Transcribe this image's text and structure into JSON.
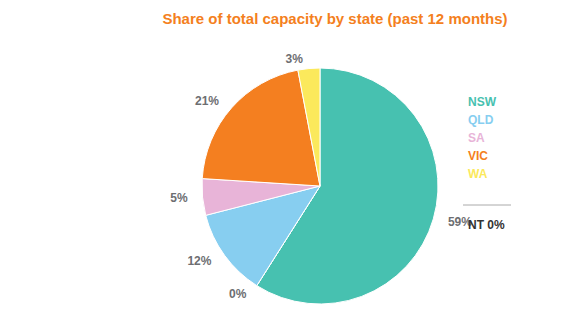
{
  "chart_data": {
    "type": "pie",
    "title": "Share of total capacity by state (past 12 months)",
    "categories": [
      "NSW",
      "NT",
      "QLD",
      "SA",
      "VIC",
      "WA"
    ],
    "values": [
      59,
      0,
      12,
      5,
      21,
      3
    ],
    "value_labels": [
      "59%",
      "0%",
      "12%",
      "5%",
      "21%",
      "3%"
    ],
    "colors": [
      "#47c1b0",
      "#333333",
      "#87cef0",
      "#e8b4d8",
      "#f47f20",
      "#fbe95c"
    ],
    "data_labels": true,
    "legend": "right"
  }
}
